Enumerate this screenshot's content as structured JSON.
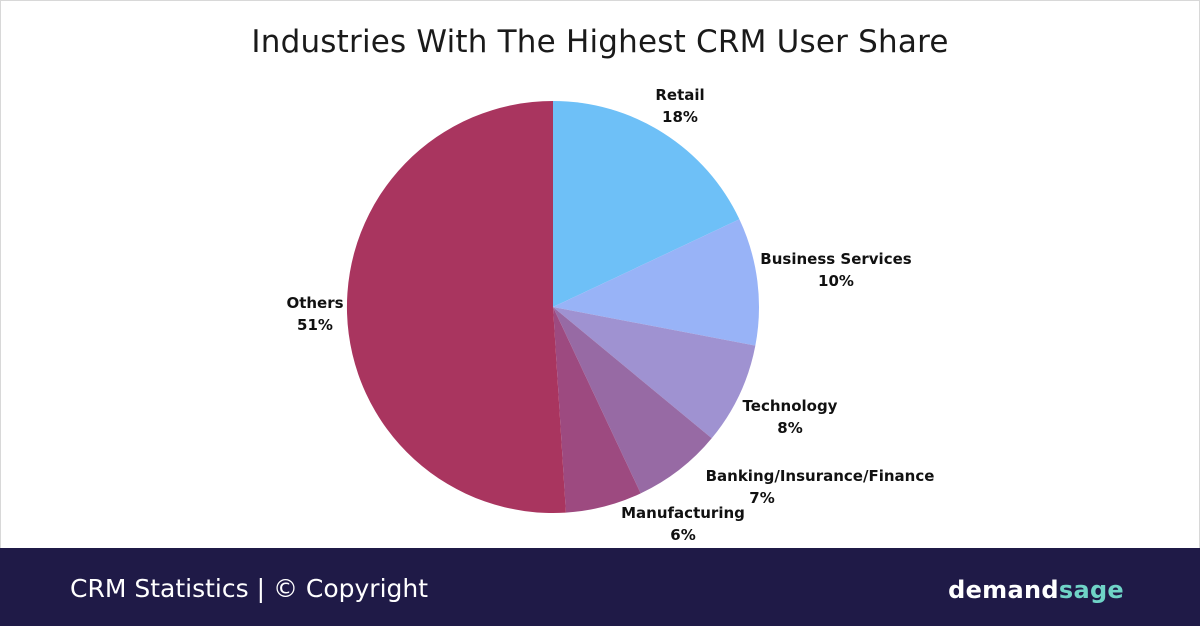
{
  "chart_data": {
    "type": "pie",
    "title": "Industries With The Highest CRM User Share",
    "slices": [
      {
        "label": "Retail",
        "value": 18,
        "value_label": "18%",
        "color": "#6ec0f7"
      },
      {
        "label": "Business Services",
        "value": 10,
        "value_label": "10%",
        "color": "#98b3f7"
      },
      {
        "label": "Technology",
        "value": 8,
        "value_label": "8%",
        "color": "#9f92d1"
      },
      {
        "label": "Banking/Insurance/Finance",
        "value": 7,
        "value_label": "7%",
        "color": "#976aa4"
      },
      {
        "label": "Manufacturing",
        "value": 6,
        "value_label": "6%",
        "color": "#9d4a80"
      },
      {
        "label": "Others",
        "value": 51,
        "value_label": "51%",
        "color": "#a9355f"
      }
    ]
  },
  "footer": {
    "text": "CRM Statistics | © Copyright",
    "background": "#1f1a47",
    "brand_part1": "demand",
    "brand_part2": "sage",
    "brand_accent": "#6fd3c7"
  }
}
